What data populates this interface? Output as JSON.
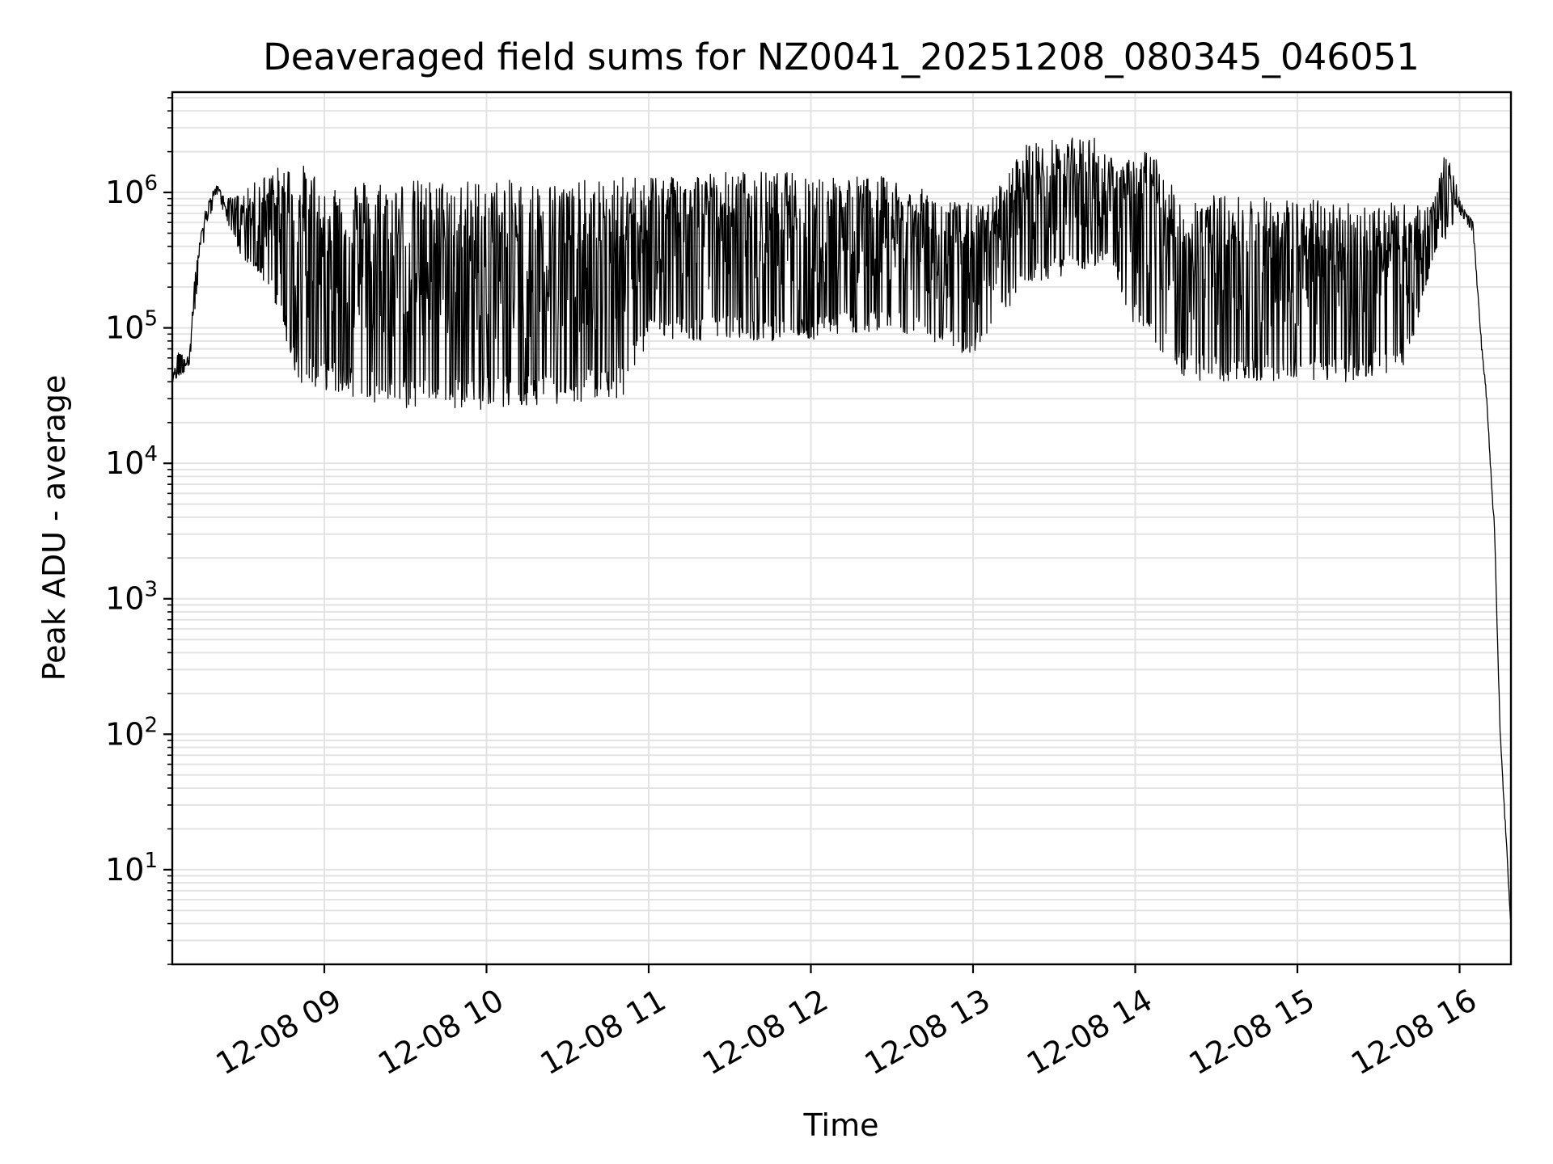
{
  "chart_data": {
    "type": "line",
    "title": "Deaveraged field sums for NZ0041_20251208_080345_046051",
    "xlabel": "Time",
    "ylabel": "Peak ADU - average",
    "yscale": "log",
    "grid": true,
    "ylim": [
      2,
      5500000
    ],
    "xlim": [
      "2025-12-08 08:03:45",
      "2025-12-08 16:19:00"
    ],
    "x_ticks": [
      {
        "t": "2025-12-08 09:00",
        "label": "12-08 09"
      },
      {
        "t": "2025-12-08 10:00",
        "label": "12-08 10"
      },
      {
        "t": "2025-12-08 11:00",
        "label": "12-08 11"
      },
      {
        "t": "2025-12-08 12:00",
        "label": "12-08 12"
      },
      {
        "t": "2025-12-08 13:00",
        "label": "12-08 13"
      },
      {
        "t": "2025-12-08 14:00",
        "label": "12-08 14"
      },
      {
        "t": "2025-12-08 15:00",
        "label": "12-08 15"
      },
      {
        "t": "2025-12-08 16:00",
        "label": "12-08 16"
      }
    ],
    "y_ticks": [
      {
        "value": 10,
        "base": "10",
        "exp": "1"
      },
      {
        "value": 100,
        "base": "10",
        "exp": "2"
      },
      {
        "value": 1000,
        "base": "10",
        "exp": "3"
      },
      {
        "value": 10000,
        "base": "10",
        "exp": "4"
      },
      {
        "value": 100000,
        "base": "10",
        "exp": "5"
      },
      {
        "value": 1000000,
        "base": "10",
        "exp": "6"
      }
    ],
    "series": [
      {
        "color": "#000000",
        "upper_envelope": [
          [
            "2025-12-08 08:03:45",
            40000
          ],
          [
            "2025-12-08 08:06",
            70000
          ],
          [
            "2025-12-08 08:10",
            60000
          ],
          [
            "2025-12-08 08:12",
            250000
          ],
          [
            "2025-12-08 08:16",
            800000
          ],
          [
            "2025-12-08 08:20",
            1150000
          ],
          [
            "2025-12-08 08:24",
            900000
          ],
          [
            "2025-12-08 08:30",
            1000000
          ],
          [
            "2025-12-08 08:40",
            1500000
          ],
          [
            "2025-12-08 08:50",
            1700000
          ],
          [
            "2025-12-08 09:00",
            1300000
          ],
          [
            "2025-12-08 09:30",
            1250000
          ],
          [
            "2025-12-08 10:00",
            1250000
          ],
          [
            "2025-12-08 10:30",
            1200000
          ],
          [
            "2025-12-08 10:50",
            1300000
          ],
          [
            "2025-12-08 11:00",
            1400000
          ],
          [
            "2025-12-08 11:30",
            1450000
          ],
          [
            "2025-12-08 12:00",
            1400000
          ],
          [
            "2025-12-08 12:30",
            1300000
          ],
          [
            "2025-12-08 12:50",
            900000
          ],
          [
            "2025-12-08 13:05",
            800000
          ],
          [
            "2025-12-08 13:20",
            2400000
          ],
          [
            "2025-12-08 13:45",
            2600000
          ],
          [
            "2025-12-08 13:55",
            1600000
          ],
          [
            "2025-12-08 14:05",
            2300000
          ],
          [
            "2025-12-08 14:15",
            1000000
          ],
          [
            "2025-12-08 14:40",
            950000
          ],
          [
            "2025-12-08 15:00",
            900000
          ],
          [
            "2025-12-08 15:30",
            850000
          ],
          [
            "2025-12-08 15:50",
            800000
          ],
          [
            "2025-12-08 15:55",
            2400000
          ],
          [
            "2025-12-08 16:00",
            900000
          ],
          [
            "2025-12-08 16:05",
            600000
          ],
          [
            "2025-12-08 16:08",
            80000
          ],
          [
            "2025-12-08 16:10",
            30000
          ],
          [
            "2025-12-08 16:13",
            3000
          ],
          [
            "2025-12-08 16:15",
            100
          ],
          [
            "2025-12-08 16:19:00",
            4
          ]
        ],
        "lower_envelope": [
          [
            "2025-12-08 08:03:45",
            40000
          ],
          [
            "2025-12-08 08:10",
            50000
          ],
          [
            "2025-12-08 08:14",
            300000
          ],
          [
            "2025-12-08 08:20",
            1000000
          ],
          [
            "2025-12-08 08:30",
            300000
          ],
          [
            "2025-12-08 08:40",
            200000
          ],
          [
            "2025-12-08 08:50",
            40000
          ],
          [
            "2025-12-08 09:00",
            35000
          ],
          [
            "2025-12-08 09:30",
            25000
          ],
          [
            "2025-12-08 10:00",
            25000
          ],
          [
            "2025-12-08 10:30",
            28000
          ],
          [
            "2025-12-08 10:50",
            30000
          ],
          [
            "2025-12-08 11:00",
            80000
          ],
          [
            "2025-12-08 11:30",
            80000
          ],
          [
            "2025-12-08 12:00",
            80000
          ],
          [
            "2025-12-08 12:30",
            100000
          ],
          [
            "2025-12-08 13:00",
            60000
          ],
          [
            "2025-12-08 13:20",
            200000
          ],
          [
            "2025-12-08 13:50",
            300000
          ],
          [
            "2025-12-08 14:00",
            100000
          ],
          [
            "2025-12-08 14:20",
            40000
          ],
          [
            "2025-12-08 14:50",
            40000
          ],
          [
            "2025-12-08 15:20",
            40000
          ],
          [
            "2025-12-08 15:40",
            50000
          ],
          [
            "2025-12-08 15:50",
            300000
          ],
          [
            "2025-12-08 16:00",
            700000
          ],
          [
            "2025-12-08 16:05",
            500000
          ],
          [
            "2025-12-08 16:08",
            80000
          ],
          [
            "2025-12-08 16:10",
            30000
          ],
          [
            "2025-12-08 16:13",
            3000
          ],
          [
            "2025-12-08 16:15",
            100
          ],
          [
            "2025-12-08 16:19:00",
            4
          ]
        ]
      }
    ]
  }
}
